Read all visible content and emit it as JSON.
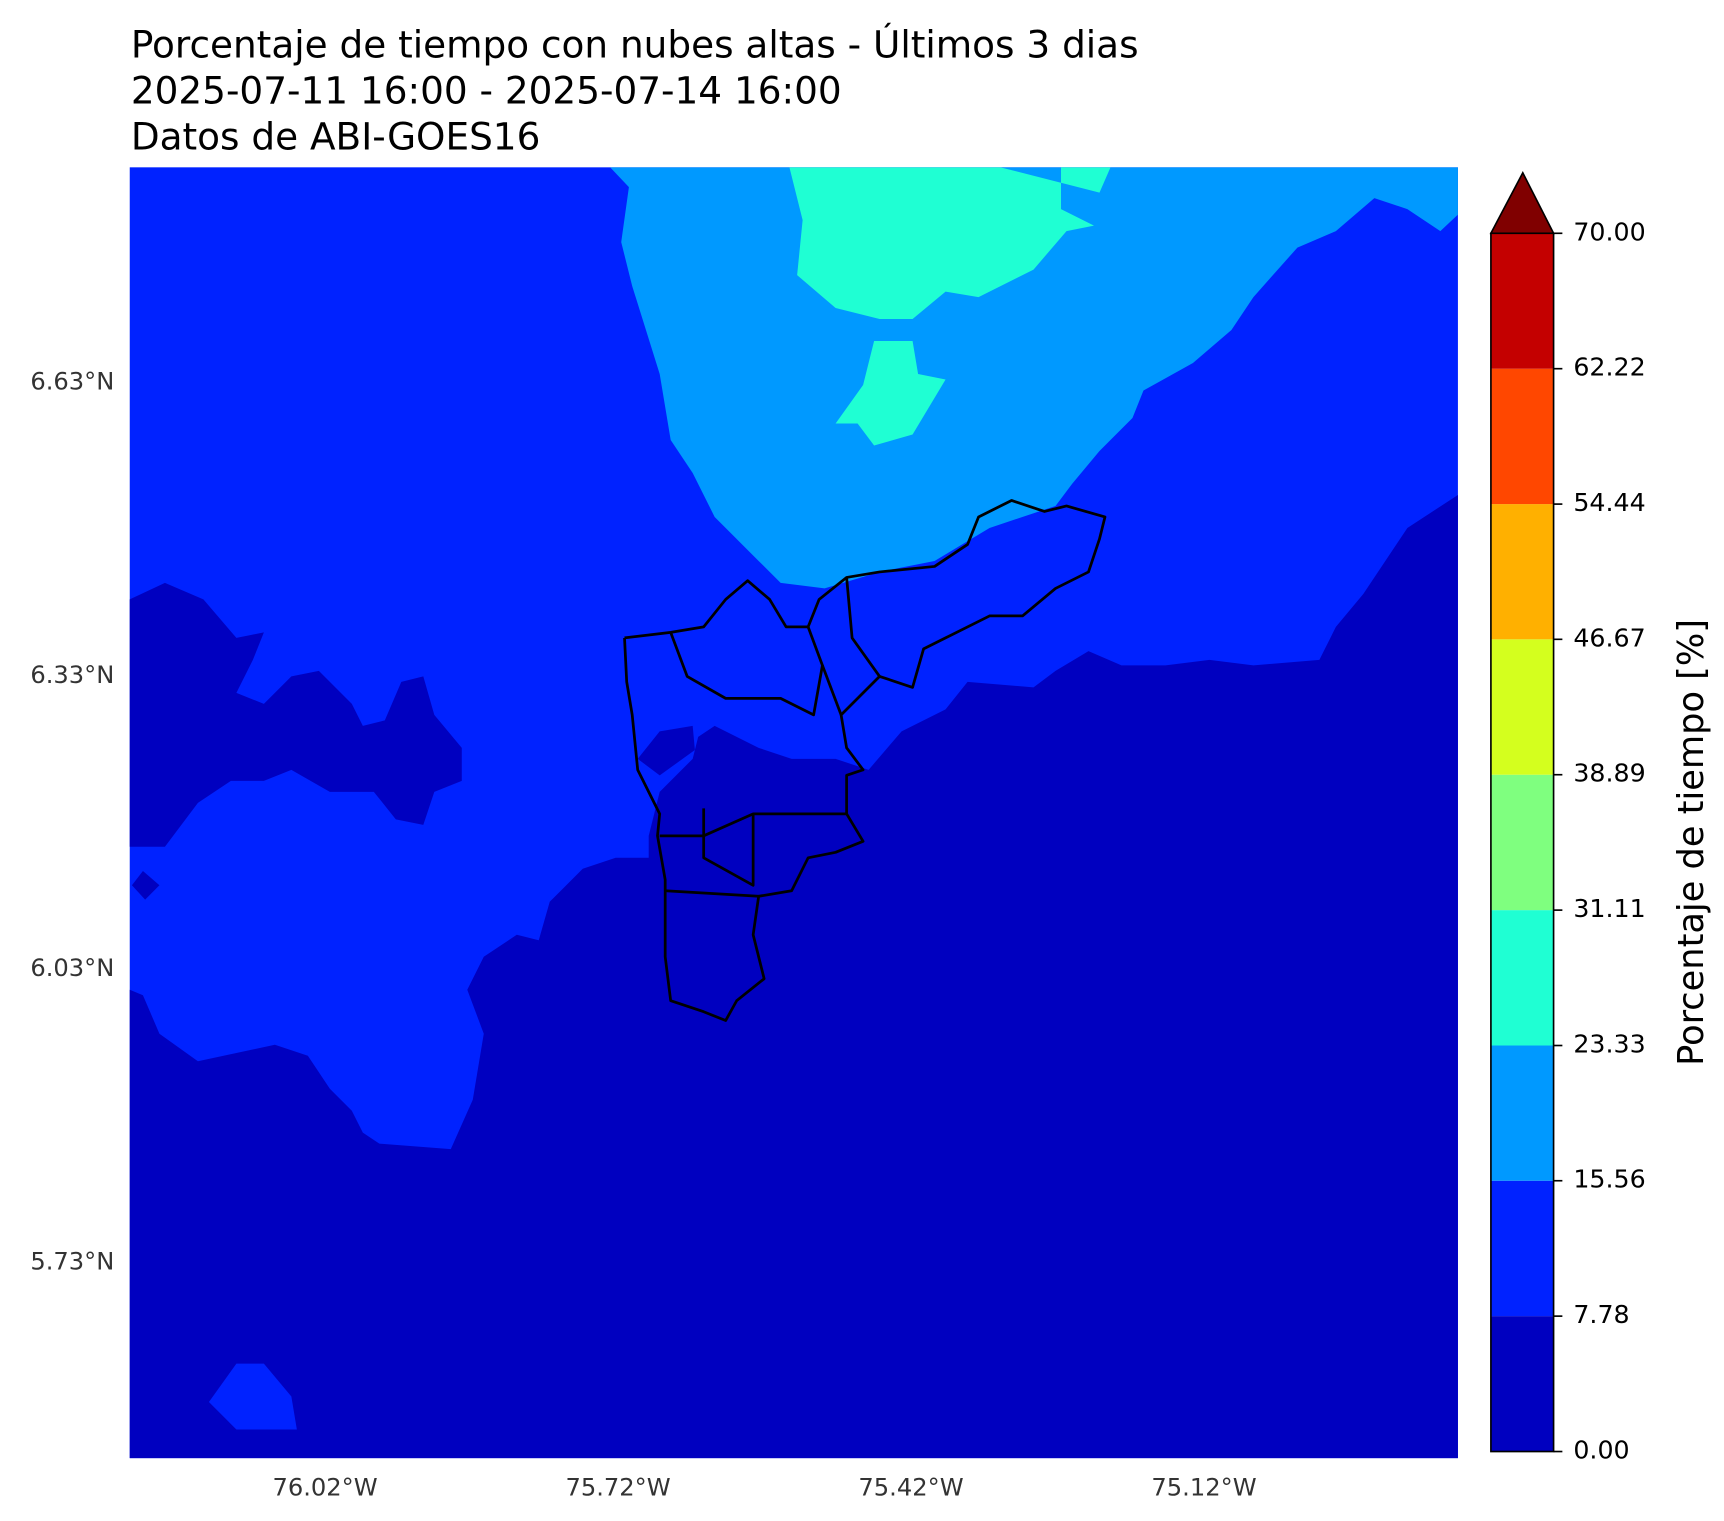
{
  "chart_data": {
    "type": "contour-map",
    "title_lines": [
      "Porcentaje de tiempo con nubes altas - Últimos 3 dias",
      "2025-07-11 16:00 - 2025-07-14 16:00",
      "Datos de ABI-GOES16"
    ],
    "xlim": [
      -76.22,
      -74.86
    ],
    "ylim": [
      5.53,
      6.85
    ],
    "xticks": [
      {
        "value": -76.02,
        "label": "76.02°W"
      },
      {
        "value": -75.72,
        "label": "75.72°W"
      },
      {
        "value": -75.42,
        "label": "75.42°W"
      },
      {
        "value": -75.12,
        "label": "75.12°W"
      }
    ],
    "yticks": [
      {
        "value": 6.63,
        "label": "6.63°N"
      },
      {
        "value": 6.33,
        "label": "6.33°N"
      },
      {
        "value": 6.03,
        "label": "6.03°N"
      },
      {
        "value": 5.73,
        "label": "5.73°N"
      }
    ],
    "colorbar": {
      "label": "Porcentaje de tiempo [%]",
      "ticks": [
        {
          "value": 0,
          "label": "0.00"
        },
        {
          "value": 7.78,
          "label": "7.78"
        },
        {
          "value": 15.56,
          "label": "15.56"
        },
        {
          "value": 23.33,
          "label": "23.33"
        },
        {
          "value": 31.11,
          "label": "31.11"
        },
        {
          "value": 38.89,
          "label": "38.89"
        },
        {
          "value": 46.67,
          "label": "46.67"
        },
        {
          "value": 54.44,
          "label": "54.44"
        },
        {
          "value": 62.22,
          "label": "62.22"
        },
        {
          "value": 70,
          "label": "70.00"
        }
      ],
      "colors": [
        "#0000c0",
        "#0022ff",
        "#0099ff",
        "#1fffd3",
        "#7fff7f",
        "#d4ff1e",
        "#ffb000",
        "#ff4700",
        "#c40000"
      ],
      "extend_color": "#800000"
    }
  }
}
